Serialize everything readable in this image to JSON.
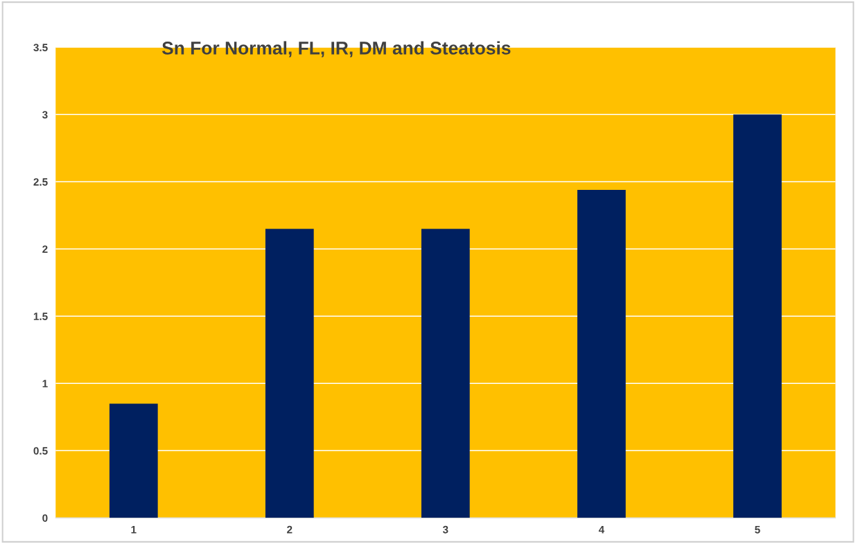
{
  "chart_data": {
    "type": "bar",
    "title": "Sn For Normal, FL, IR, DM and Steatosis",
    "categories": [
      "1",
      "2",
      "3",
      "4",
      "5"
    ],
    "values": [
      0.85,
      2.15,
      2.15,
      2.44,
      3.0
    ],
    "color": "#002060",
    "ylim": [
      0,
      3.5
    ],
    "yticks": [
      0,
      0.5,
      1,
      1.5,
      2,
      2.5,
      3,
      3.5
    ],
    "grid": "y",
    "legend": false
  }
}
